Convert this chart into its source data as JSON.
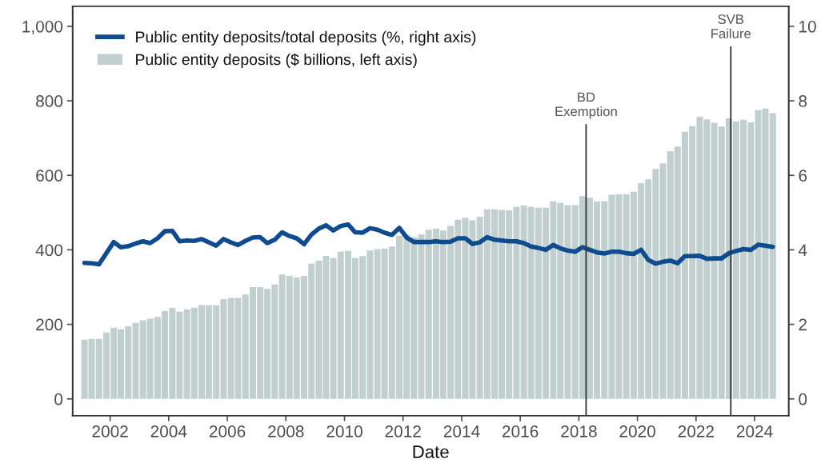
{
  "chart_data": {
    "type": "bar",
    "xlabel": "Date",
    "x": [
      "2001-02-15",
      "2001-05-15",
      "2001-08-15",
      "2001-11-15",
      "2002-02-15",
      "2002-05-15",
      "2002-08-15",
      "2002-11-15",
      "2003-02-15",
      "2003-05-15",
      "2003-08-15",
      "2003-11-15",
      "2004-02-15",
      "2004-05-15",
      "2004-08-15",
      "2004-11-15",
      "2005-02-15",
      "2005-05-15",
      "2005-08-15",
      "2005-11-15",
      "2006-02-15",
      "2006-05-15",
      "2006-08-15",
      "2006-11-15",
      "2007-02-15",
      "2007-05-15",
      "2007-08-15",
      "2007-11-15",
      "2008-02-15",
      "2008-05-15",
      "2008-08-15",
      "2008-11-15",
      "2009-02-15",
      "2009-05-15",
      "2009-08-15",
      "2009-11-15",
      "2010-02-15",
      "2010-05-15",
      "2010-08-15",
      "2010-11-15",
      "2011-02-15",
      "2011-05-15",
      "2011-08-15",
      "2011-11-15",
      "2012-02-15",
      "2012-05-15",
      "2012-08-15",
      "2012-11-15",
      "2013-02-15",
      "2013-05-15",
      "2013-08-15",
      "2013-11-15",
      "2014-02-15",
      "2014-05-15",
      "2014-08-15",
      "2014-11-15",
      "2015-02-15",
      "2015-05-15",
      "2015-08-15",
      "2015-11-15",
      "2016-02-15",
      "2016-05-15",
      "2016-08-15",
      "2016-11-15",
      "2017-02-15",
      "2017-05-15",
      "2017-08-15",
      "2017-11-15",
      "2018-02-15",
      "2018-05-15",
      "2018-08-15",
      "2018-11-15",
      "2019-02-15",
      "2019-05-15",
      "2019-08-15",
      "2019-11-15",
      "2020-02-15",
      "2020-05-15",
      "2020-08-15",
      "2020-11-15",
      "2021-02-15",
      "2021-05-15",
      "2021-08-15",
      "2021-11-15",
      "2022-02-15",
      "2022-05-15",
      "2022-08-15",
      "2022-11-15",
      "2023-02-15",
      "2023-05-15",
      "2023-08-15",
      "2023-11-15",
      "2024-02-15",
      "2024-05-15",
      "2024-08-15"
    ],
    "series": [
      {
        "name": "Public entity deposits/total deposits (%, right axis)",
        "type": "line",
        "axis": "y2",
        "color": "#0e4c8f",
        "values": [
          3.65,
          3.64,
          3.61,
          3.91,
          4.21,
          4.07,
          4.1,
          4.17,
          4.23,
          4.18,
          4.31,
          4.5,
          4.51,
          4.23,
          4.25,
          4.24,
          4.29,
          4.2,
          4.11,
          4.29,
          4.2,
          4.13,
          4.24,
          4.33,
          4.34,
          4.18,
          4.27,
          4.47,
          4.37,
          4.31,
          4.15,
          4.41,
          4.57,
          4.66,
          4.52,
          4.64,
          4.68,
          4.47,
          4.46,
          4.58,
          4.54,
          4.46,
          4.4,
          4.59,
          4.33,
          4.21,
          4.21,
          4.21,
          4.23,
          4.21,
          4.22,
          4.31,
          4.31,
          4.16,
          4.2,
          4.34,
          4.27,
          4.25,
          4.23,
          4.23,
          4.18,
          4.09,
          4.05,
          4.0,
          4.13,
          4.04,
          3.98,
          3.95,
          4.07,
          4.0,
          3.93,
          3.9,
          3.95,
          3.95,
          3.91,
          3.89,
          4.0,
          3.73,
          3.63,
          3.68,
          3.71,
          3.64,
          3.83,
          3.83,
          3.84,
          3.76,
          3.77,
          3.77,
          3.91,
          3.97,
          4.02,
          4.0,
          4.14,
          4.11,
          4.08
        ]
      },
      {
        "name": "Public entity deposits ($ billions, left axis)",
        "color": "#c2cfcf",
        "values": [
          159,
          161,
          161,
          178,
          191,
          187,
          195,
          204,
          211,
          215,
          220,
          236,
          244,
          234,
          240,
          245,
          252,
          251,
          251,
          268,
          271,
          271,
          280,
          300,
          300,
          295,
          307,
          334,
          330,
          326,
          330,
          363,
          371,
          384,
          378,
          395,
          397,
          378,
          383,
          398,
          402,
          403,
          409,
          438,
          441,
          434,
          441,
          454,
          457,
          452,
          464,
          481,
          486,
          479,
          489,
          509,
          509,
          507,
          506,
          515,
          519,
          515,
          513,
          513,
          530,
          526,
          520,
          520,
          544,
          540,
          530,
          530,
          548,
          549,
          549,
          556,
          579,
          589,
          617,
          632,
          665,
          677,
          717,
          732,
          757,
          750,
          741,
          731,
          753,
          745,
          749,
          742,
          775,
          779,
          767
        ]
      }
    ],
    "xlim": [
      "2000-09-20",
      "2025-03-01"
    ],
    "xticks": [
      "2002",
      "2004",
      "2006",
      "2008",
      "2010",
      "2012",
      "2014",
      "2016",
      "2018",
      "2020",
      "2022",
      "2024"
    ],
    "ylim": [
      -45,
      1054
    ],
    "yticks": [
      0,
      200,
      400,
      600,
      800,
      {
        "value": 1000,
        "label": "1,000"
      }
    ],
    "y2lim": [
      -0.45,
      10.54
    ],
    "y2ticks": [
      0,
      2,
      4,
      6,
      8,
      10
    ],
    "ref_lines": [
      {
        "axis": "x",
        "value": "2018-04-01",
        "label": "BD\nExemption",
        "color": "#333333"
      },
      {
        "axis": "x",
        "value": "2023-03-10",
        "label": "SVB\nFailure",
        "color": "#333333"
      }
    ],
    "legend": "top left",
    "grid": false
  }
}
